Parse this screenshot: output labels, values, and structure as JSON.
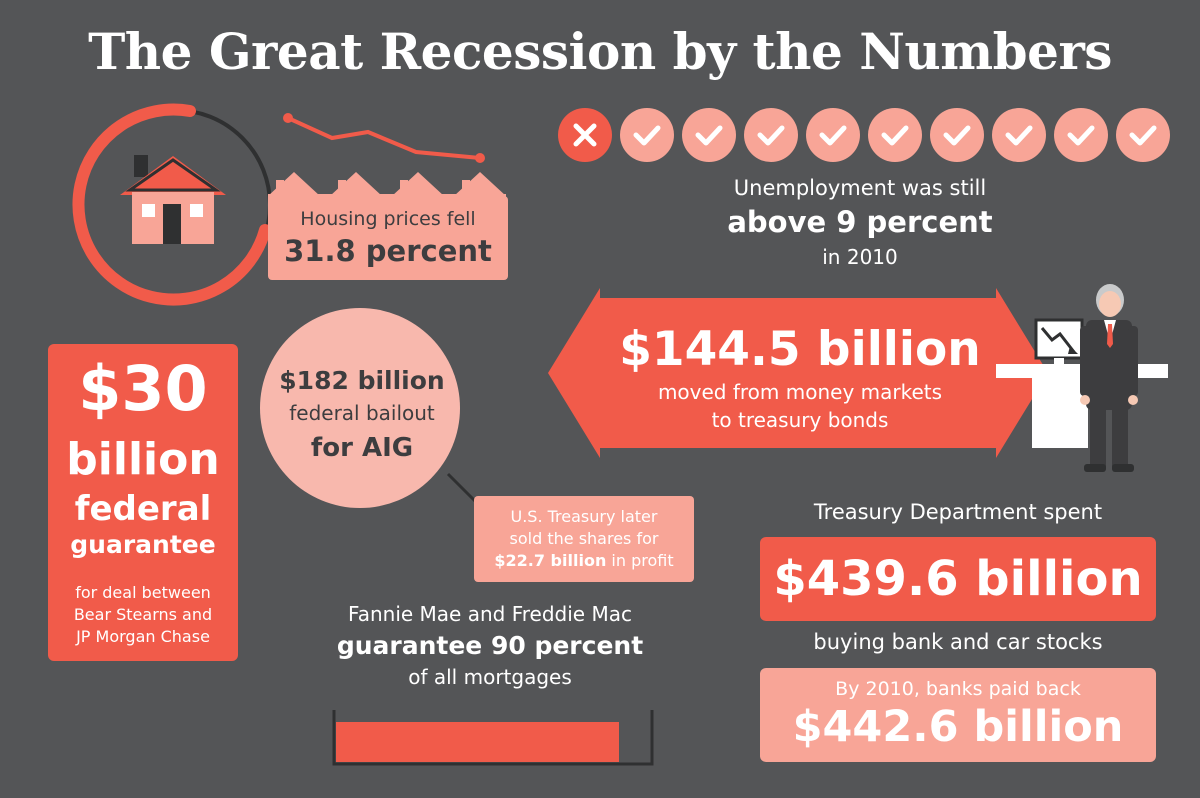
{
  "title": "The Great Recession by the Numbers",
  "housing": {
    "line1": "Housing prices fell",
    "line2": "31.8 percent"
  },
  "unemployment": {
    "line1": "Unemployment was still",
    "line2": "above 9 percent",
    "line3": "in 2010",
    "icons": [
      "x-icon",
      "check-icon",
      "check-icon",
      "check-icon",
      "check-icon",
      "check-icon",
      "check-icon",
      "check-icon",
      "check-icon",
      "check-icon"
    ]
  },
  "money_markets": {
    "amount": "$144.5 billion",
    "line1": "moved from money markets",
    "line2": "to treasury bonds"
  },
  "guarantee": {
    "amount": "$30",
    "line2": "billion",
    "line3": "federal",
    "line4": "guarantee",
    "desc1": "for deal between",
    "desc2": "Bear Stearns and",
    "desc3": "JP Morgan Chase"
  },
  "aig": {
    "line1": "$182 billion",
    "line2": "federal bailout",
    "line3": "for AIG"
  },
  "profit": {
    "line1": "U.S. Treasury later",
    "line2": "sold the shares for",
    "amount": "$22.7 billion",
    "suffix": " in profit"
  },
  "fannie": {
    "line1": "Fannie Mae and Freddie Mac",
    "line2": "guarantee 90 percent",
    "line3": "of all mortgages",
    "bar_fraction": 0.9
  },
  "treasury": {
    "label": "Treasury Department spent",
    "amount": "$439.6 billion",
    "sub": "buying bank and car stocks"
  },
  "payback": {
    "line1": "By 2010, banks paid back",
    "amount": "$442.6 billion"
  },
  "colors": {
    "background": "#545557",
    "accent": "#f15b4a",
    "light": "#f8a597",
    "dark": "#2f3031"
  }
}
